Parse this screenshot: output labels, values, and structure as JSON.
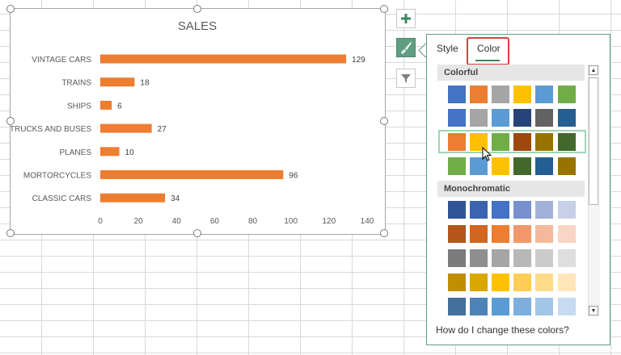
{
  "chart": {
    "title": "SALES",
    "x_ticks": [
      "0",
      "20",
      "40",
      "60",
      "80",
      "100",
      "120",
      "140"
    ]
  },
  "chart_data": {
    "type": "bar",
    "orientation": "horizontal",
    "title": "SALES",
    "categories": [
      "VINTAGE CARS",
      "TRAINS",
      "SHIPS",
      "TRUCKS AND BUSES",
      "PLANES",
      "MORTORCYCLES",
      "CLASSIC CARS"
    ],
    "values": [
      129,
      18,
      6,
      27,
      10,
      96,
      34
    ],
    "xlim": [
      0,
      140
    ],
    "bar_color": "#ed7d31",
    "grid": false,
    "legend": "none"
  },
  "side_buttons": [
    {
      "name": "add-chart-element-button",
      "icon": "plus-icon"
    },
    {
      "name": "chart-styles-button",
      "icon": "brush-icon"
    },
    {
      "name": "chart-filters-button",
      "icon": "funnel-icon"
    }
  ],
  "popup": {
    "tabs": {
      "style": "Style",
      "color": "Color"
    },
    "sections": {
      "colorful": "Colorful",
      "mono": "Monochromatic"
    },
    "help": "How do I change these colors?"
  },
  "palettes": {
    "colorful": [
      [
        "#4472c4",
        "#ed7d31",
        "#a5a5a5",
        "#ffc000",
        "#5b9bd5",
        "#70ad47"
      ],
      [
        "#4472c4",
        "#a5a5a5",
        "#5b9bd5",
        "#264478",
        "#636363",
        "#255e91"
      ],
      [
        "#ed7d31",
        "#ffc000",
        "#70ad47",
        "#9e480e",
        "#997300",
        "#43682b"
      ],
      [
        "#70ad47",
        "#5b9bd5",
        "#ffc000",
        "#43682b",
        "#255e91",
        "#997300"
      ]
    ],
    "mono": [
      [
        "#2f5597",
        "#3a64b0",
        "#4472c4",
        "#7890cd",
        "#a1b1da",
        "#c7d0e8"
      ],
      [
        "#b4561b",
        "#d0661f",
        "#ed7d31",
        "#f0986a",
        "#f4b89a",
        "#f8d5c4"
      ],
      [
        "#7b7b7b",
        "#8e8e8e",
        "#a5a5a5",
        "#b8b8b8",
        "#cbcbcb",
        "#dedede"
      ],
      [
        "#bf8f00",
        "#dca600",
        "#ffc000",
        "#ffcd54",
        "#ffda88",
        "#ffe6b9"
      ],
      [
        "#41719c",
        "#4c84b8",
        "#5b9bd5",
        "#7dafde",
        "#a2c5e8",
        "#c6dbf1"
      ]
    ]
  },
  "colors": {
    "accent": "#5f9e81",
    "highlight_box": "#e03c3c"
  }
}
